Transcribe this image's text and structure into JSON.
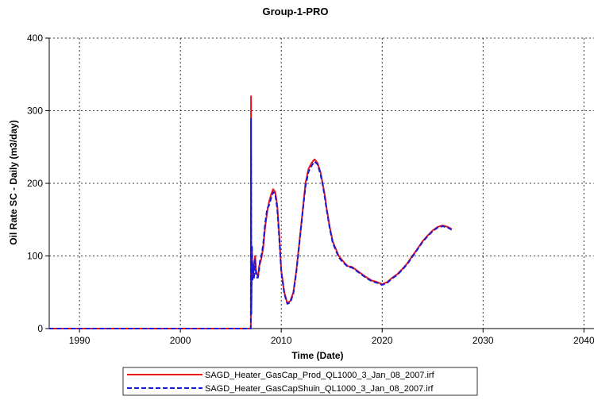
{
  "chart_data": {
    "type": "line",
    "title": "Group-1-PRO",
    "xlabel": "Time (Date)",
    "ylabel": "Oil Rate SC - Daily (m3/day)",
    "xlim": [
      1987,
      2041
    ],
    "ylim": [
      0,
      400
    ],
    "x_ticks": [
      1990,
      2000,
      2010,
      2020,
      2030,
      2040
    ],
    "y_ticks": [
      0,
      100,
      200,
      300,
      400
    ],
    "grid": true,
    "legend_position": "bottom-center",
    "series": [
      {
        "name": "SAGD_Heater_GasCap_Prod_QL1000_3_Jan_08_2007.irf",
        "color": "#e8141b",
        "style": "solid",
        "x": [
          1987,
          2006.98,
          2006.99,
          2007.0,
          2007.03,
          2007.06,
          2007.1,
          2007.15,
          2007.2,
          2007.3,
          2007.4,
          2007.5,
          2007.6,
          2007.7,
          2007.8,
          2007.9,
          2008.0,
          2008.2,
          2008.4,
          2008.6,
          2008.8,
          2009.0,
          2009.2,
          2009.4,
          2009.6,
          2009.8,
          2010.0,
          2010.3,
          2010.6,
          2010.9,
          2011.2,
          2011.5,
          2011.8,
          2012.1,
          2012.4,
          2012.7,
          2013.0,
          2013.3,
          2013.6,
          2013.9,
          2014.1,
          2014.3,
          2014.5,
          2014.8,
          2015.1,
          2015.4,
          2015.7,
          2016.0,
          2016.3,
          2016.6,
          2017.0,
          2017.5,
          2018.0,
          2018.5,
          2019.0,
          2019.5,
          2020.0,
          2020.5,
          2021.0,
          2021.5,
          2022.0,
          2022.5,
          2023.0,
          2023.5,
          2024.0,
          2024.5,
          2025.0,
          2025.5,
          2026.0,
          2026.5,
          2026.9
        ],
        "values": [
          0,
          0,
          5,
          320,
          30,
          60,
          110,
          70,
          80,
          90,
          100,
          80,
          75,
          70,
          85,
          90,
          95,
          110,
          140,
          160,
          175,
          185,
          192,
          188,
          170,
          130,
          80,
          50,
          35,
          38,
          50,
          80,
          120,
          160,
          200,
          220,
          228,
          233,
          228,
          215,
          200,
          185,
          165,
          140,
          120,
          110,
          100,
          95,
          90,
          86,
          85,
          80,
          75,
          70,
          66,
          64,
          61,
          64,
          70,
          75,
          82,
          90,
          100,
          110,
          120,
          128,
          135,
          140,
          142,
          140,
          137
        ]
      },
      {
        "name": "SAGD_Heater_GasCapShuin_QL1000_3_Jan_08_2007.irf",
        "color": "#1a1ad6",
        "style": "dashed",
        "x": [
          1987,
          2006.98,
          2006.99,
          2007.0,
          2007.03,
          2007.06,
          2007.1,
          2007.15,
          2007.2,
          2007.3,
          2007.4,
          2007.5,
          2007.6,
          2007.7,
          2007.8,
          2007.9,
          2008.0,
          2008.2,
          2008.4,
          2008.6,
          2008.8,
          2009.0,
          2009.2,
          2009.4,
          2009.6,
          2009.8,
          2010.0,
          2010.3,
          2010.6,
          2010.9,
          2011.2,
          2011.5,
          2011.8,
          2012.1,
          2012.4,
          2012.7,
          2013.0,
          2013.3,
          2013.6,
          2013.9,
          2014.1,
          2014.3,
          2014.5,
          2014.8,
          2015.1,
          2015.4,
          2015.7,
          2016.0,
          2016.3,
          2016.6,
          2017.0,
          2017.5,
          2018.0,
          2018.5,
          2019.0,
          2019.5,
          2020.0,
          2020.5,
          2021.0,
          2021.5,
          2022.0,
          2022.5,
          2023.0,
          2023.5,
          2024.0,
          2024.5,
          2025.0,
          2025.5,
          2026.0,
          2026.5,
          2026.9
        ],
        "values": [
          0,
          0,
          5,
          290,
          20,
          55,
          115,
          65,
          88,
          70,
          95,
          75,
          70,
          72,
          80,
          95,
          98,
          115,
          145,
          165,
          170,
          180,
          188,
          185,
          165,
          125,
          78,
          48,
          34,
          36,
          48,
          78,
          118,
          158,
          196,
          216,
          224,
          230,
          226,
          212,
          198,
          182,
          163,
          138,
          118,
          108,
          98,
          93,
          89,
          85,
          84,
          79,
          74,
          69,
          65,
          63,
          60,
          63,
          69,
          74,
          81,
          89,
          99,
          109,
          119,
          127,
          134,
          139,
          141,
          139,
          136
        ]
      }
    ]
  }
}
